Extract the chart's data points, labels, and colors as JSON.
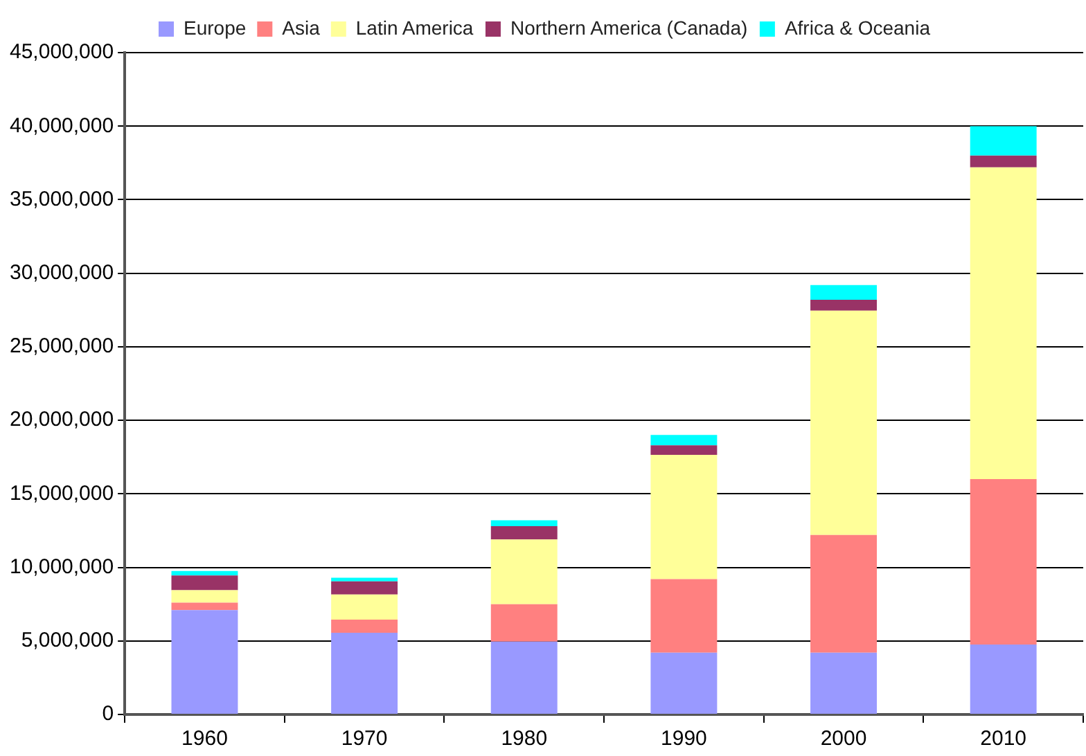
{
  "chart_data": {
    "type": "bar",
    "stacked": true,
    "categories": [
      "1960",
      "1970",
      "1980",
      "1990",
      "2000",
      "2010"
    ],
    "series": [
      {
        "name": "Europe",
        "color": "#9999ff",
        "values": [
          7100000,
          5550000,
          4950000,
          4200000,
          4200000,
          4750000
        ]
      },
      {
        "name": "Asia",
        "color": "#ff8080",
        "values": [
          500000,
          900000,
          2550000,
          5000000,
          8000000,
          11250000
        ]
      },
      {
        "name": "Latin America",
        "color": "#ffff99",
        "values": [
          850000,
          1700000,
          4400000,
          8450000,
          15250000,
          21200000
        ]
      },
      {
        "name": "Northern America (Canada)",
        "color": "#993366",
        "values": [
          1000000,
          900000,
          900000,
          650000,
          750000,
          800000
        ]
      },
      {
        "name": "Africa & Oceania",
        "color": "#00ffff",
        "values": [
          300000,
          250000,
          400000,
          700000,
          1000000,
          2000000
        ]
      }
    ],
    "ylim": [
      0,
      45000000
    ],
    "yticks": [
      {
        "value": 0,
        "label": "0"
      },
      {
        "value": 5000000,
        "label": "5,000,000"
      },
      {
        "value": 10000000,
        "label": "10,000,000"
      },
      {
        "value": 15000000,
        "label": "15,000,000"
      },
      {
        "value": 20000000,
        "label": "20,000,000"
      },
      {
        "value": 25000000,
        "label": "25,000,000"
      },
      {
        "value": 30000000,
        "label": "30,000,000"
      },
      {
        "value": 35000000,
        "label": "35,000,000"
      },
      {
        "value": 40000000,
        "label": "40,000,000"
      },
      {
        "value": 45000000,
        "label": "45,000,000"
      }
    ],
    "grid": "y",
    "legend": "top"
  }
}
